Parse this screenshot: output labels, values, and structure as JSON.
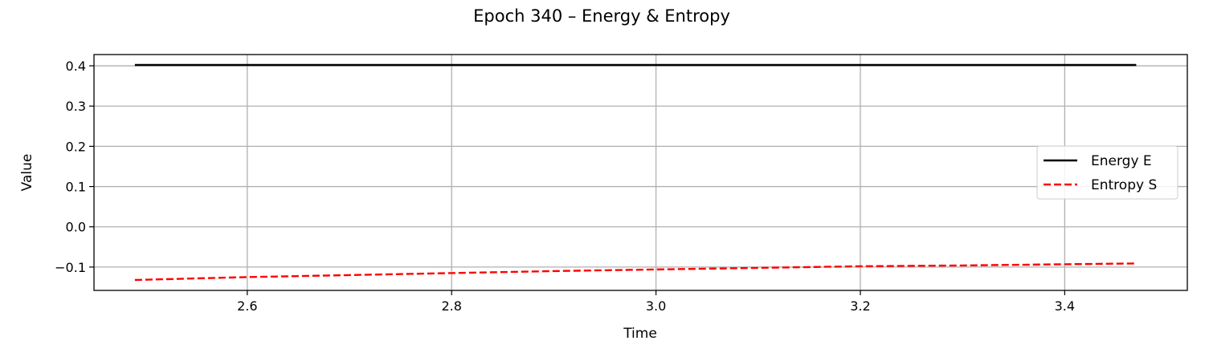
{
  "chart_data": {
    "type": "line",
    "title": "Epoch 340 – Energy & Entropy",
    "xlabel": "Time",
    "ylabel": "Value",
    "xlim": [
      2.45,
      3.52
    ],
    "ylim": [
      -0.158,
      0.428
    ],
    "xticks": [
      2.6,
      2.8,
      3.0,
      3.2,
      3.4
    ],
    "xtick_labels": [
      "2.6",
      "2.8",
      "3.0",
      "3.2",
      "3.4"
    ],
    "yticks": [
      -0.1,
      0.0,
      0.1,
      0.2,
      0.3,
      0.4
    ],
    "ytick_labels": [
      "−0.1",
      "0.0",
      "0.1",
      "0.2",
      "0.3",
      "0.4"
    ],
    "grid": true,
    "legend_position": "center-right",
    "series": [
      {
        "name": "Energy E",
        "color": "#000000",
        "line_style": "solid",
        "x": [
          2.49,
          2.6,
          2.7,
          2.8,
          2.9,
          3.0,
          3.1,
          3.2,
          3.3,
          3.4,
          3.47
        ],
        "y": [
          0.402,
          0.402,
          0.402,
          0.402,
          0.402,
          0.402,
          0.402,
          0.402,
          0.402,
          0.402,
          0.402
        ]
      },
      {
        "name": "Entropy S",
        "color": "#ff0000",
        "line_style": "dashed",
        "x": [
          2.49,
          2.6,
          2.7,
          2.8,
          2.9,
          3.0,
          3.1,
          3.2,
          3.3,
          3.4,
          3.47
        ],
        "y": [
          -0.132,
          -0.125,
          -0.12,
          -0.115,
          -0.11,
          -0.106,
          -0.102,
          -0.098,
          -0.096,
          -0.093,
          -0.091
        ]
      }
    ]
  }
}
